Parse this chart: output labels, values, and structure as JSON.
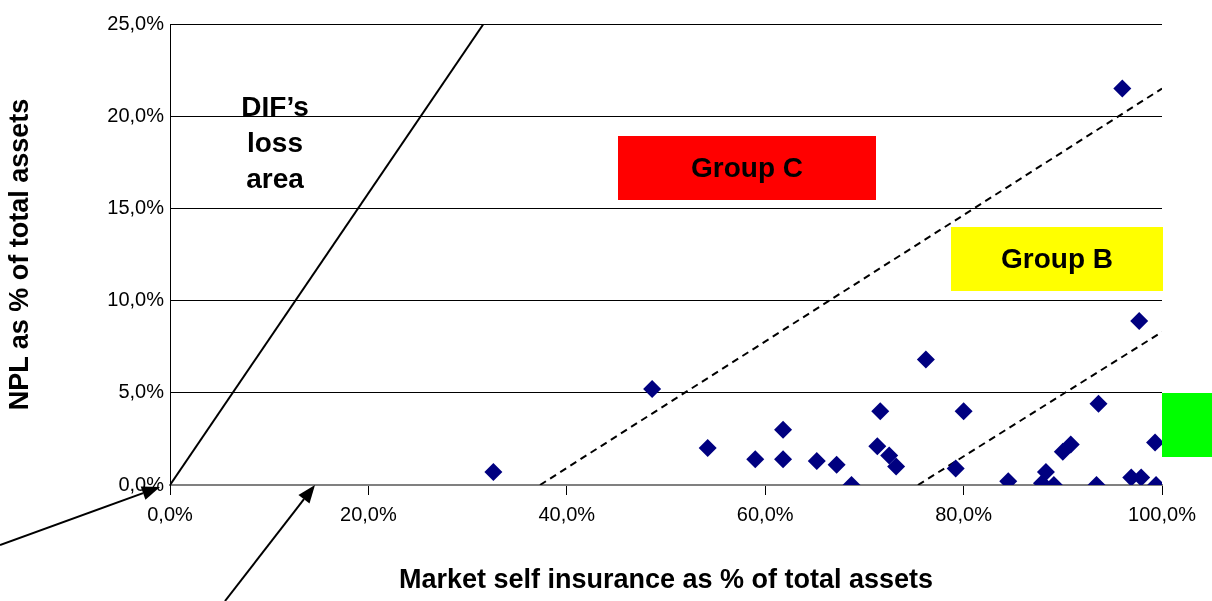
{
  "chart_data": {
    "type": "scatter",
    "xlabel": "Market self insurance as % of total assets",
    "ylabel": "NPL as % of total assets",
    "xlim": [
      0,
      100
    ],
    "ylim": [
      0,
      25
    ],
    "xticks": [
      {
        "value": 0,
        "label": "0,0%"
      },
      {
        "value": 20,
        "label": "20,0%"
      },
      {
        "value": 40,
        "label": "40,0%"
      },
      {
        "value": 60,
        "label": "60,0%"
      },
      {
        "value": 80,
        "label": "80,0%"
      },
      {
        "value": 100,
        "label": "100,0%"
      }
    ],
    "yticks": [
      {
        "value": 0,
        "label": "0,0%"
      },
      {
        "value": 5,
        "label": "5,0%"
      },
      {
        "value": 10,
        "label": "10,0%"
      },
      {
        "value": 15,
        "label": "15,0%"
      },
      {
        "value": 20,
        "label": "20,0%"
      },
      {
        "value": 25,
        "label": "25,0%"
      }
    ],
    "grid": "y",
    "legend": false,
    "marker": "diamond",
    "series": [
      {
        "type": "scatter",
        "color": "#000080",
        "x": [
          32.6,
          48.6,
          54.2,
          59.0,
          61.8,
          61.8,
          65.2,
          67.2,
          68.7,
          71.6,
          71.3,
          72.5,
          73.2,
          76.2,
          80.0,
          79.2,
          84.5,
          88.3,
          87.9,
          89.1,
          90.0,
          90.8,
          93.6,
          93.4,
          96.9,
          97.9,
          99.4,
          99.3,
          97.7,
          96.0
        ],
        "values": [
          0.7,
          5.2,
          2.0,
          1.4,
          3.0,
          1.4,
          1.3,
          1.1,
          0,
          4.0,
          2.1,
          1.6,
          1.0,
          6.8,
          4.0,
          0.9,
          0.2,
          0.7,
          0.1,
          0,
          1.8,
          2.2,
          4.4,
          0,
          0.4,
          0.4,
          0,
          2.3,
          8.9,
          21.5
        ]
      },
      {
        "type": "line",
        "color": "#000000",
        "line_style": "solid",
        "marker": "none",
        "x": [
          0,
          31.6
        ],
        "values": [
          0,
          25
        ]
      },
      {
        "type": "line",
        "color": "#000000",
        "line_style": "dashed",
        "marker": "none",
        "x": [
          37.3,
          100
        ],
        "values": [
          0,
          21.5
        ]
      },
      {
        "type": "line",
        "color": "#000000",
        "line_style": "dashed",
        "marker": "none",
        "x": [
          75.4,
          100
        ],
        "values": [
          0,
          8.3
        ]
      }
    ],
    "annotations": [
      "DIF’s loss area",
      "Group C",
      "Group B"
    ]
  }
}
